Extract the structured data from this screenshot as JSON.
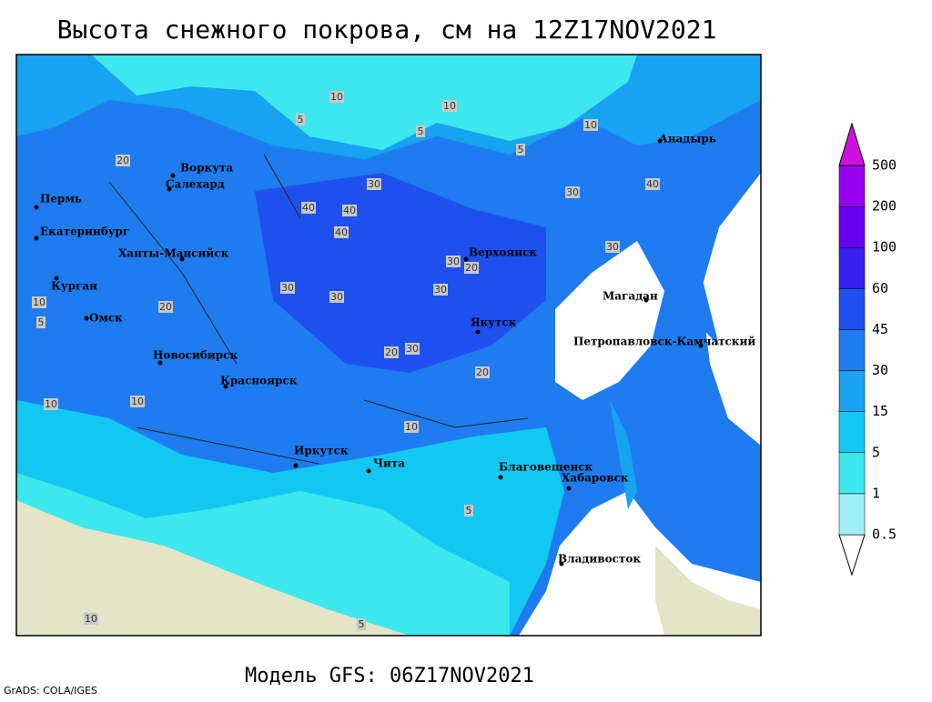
{
  "header": {
    "title": "Высота снежного покрова, см на 12Z17NOV2021"
  },
  "footer": {
    "model": "Модель GFS: 06Z17NOV2021",
    "credit": "GrADS: COLA/IGES"
  },
  "cities": [
    "Анадырь",
    "Воркута",
    "Салехард",
    "Пермь",
    "Екатеринбург",
    "Ханты-Мансийск",
    "Курган",
    "Омск",
    "Новосибирск",
    "Красноярск",
    "Верхоянск",
    "Магадан",
    "Якутск",
    "Петропавловск-Камчатский",
    "Иркутск",
    "Чита",
    "Благовещенск",
    "Хабаровск",
    "Владивосток"
  ],
  "contour_labels": [
    "10",
    "5",
    "10",
    "5",
    "5",
    "10",
    "20",
    "30",
    "40",
    "40",
    "40",
    "30",
    "20",
    "30",
    "30",
    "30",
    "30",
    "20",
    "30",
    "40",
    "30",
    "20",
    "10",
    "10",
    "10",
    "5",
    "20",
    "10",
    "5",
    "10",
    "5"
  ],
  "legend": {
    "levels": [
      0.5,
      1,
      5,
      15,
      30,
      45,
      60,
      100,
      200,
      500
    ],
    "colors": [
      "#ffffff",
      "#a0f0fa",
      "#3ce8ee",
      "#12c8f2",
      "#18a2f2",
      "#1e7cf0",
      "#1e50f0",
      "#3a1ef0",
      "#6800f0",
      "#9800f0",
      "#d010e0"
    ]
  }
}
